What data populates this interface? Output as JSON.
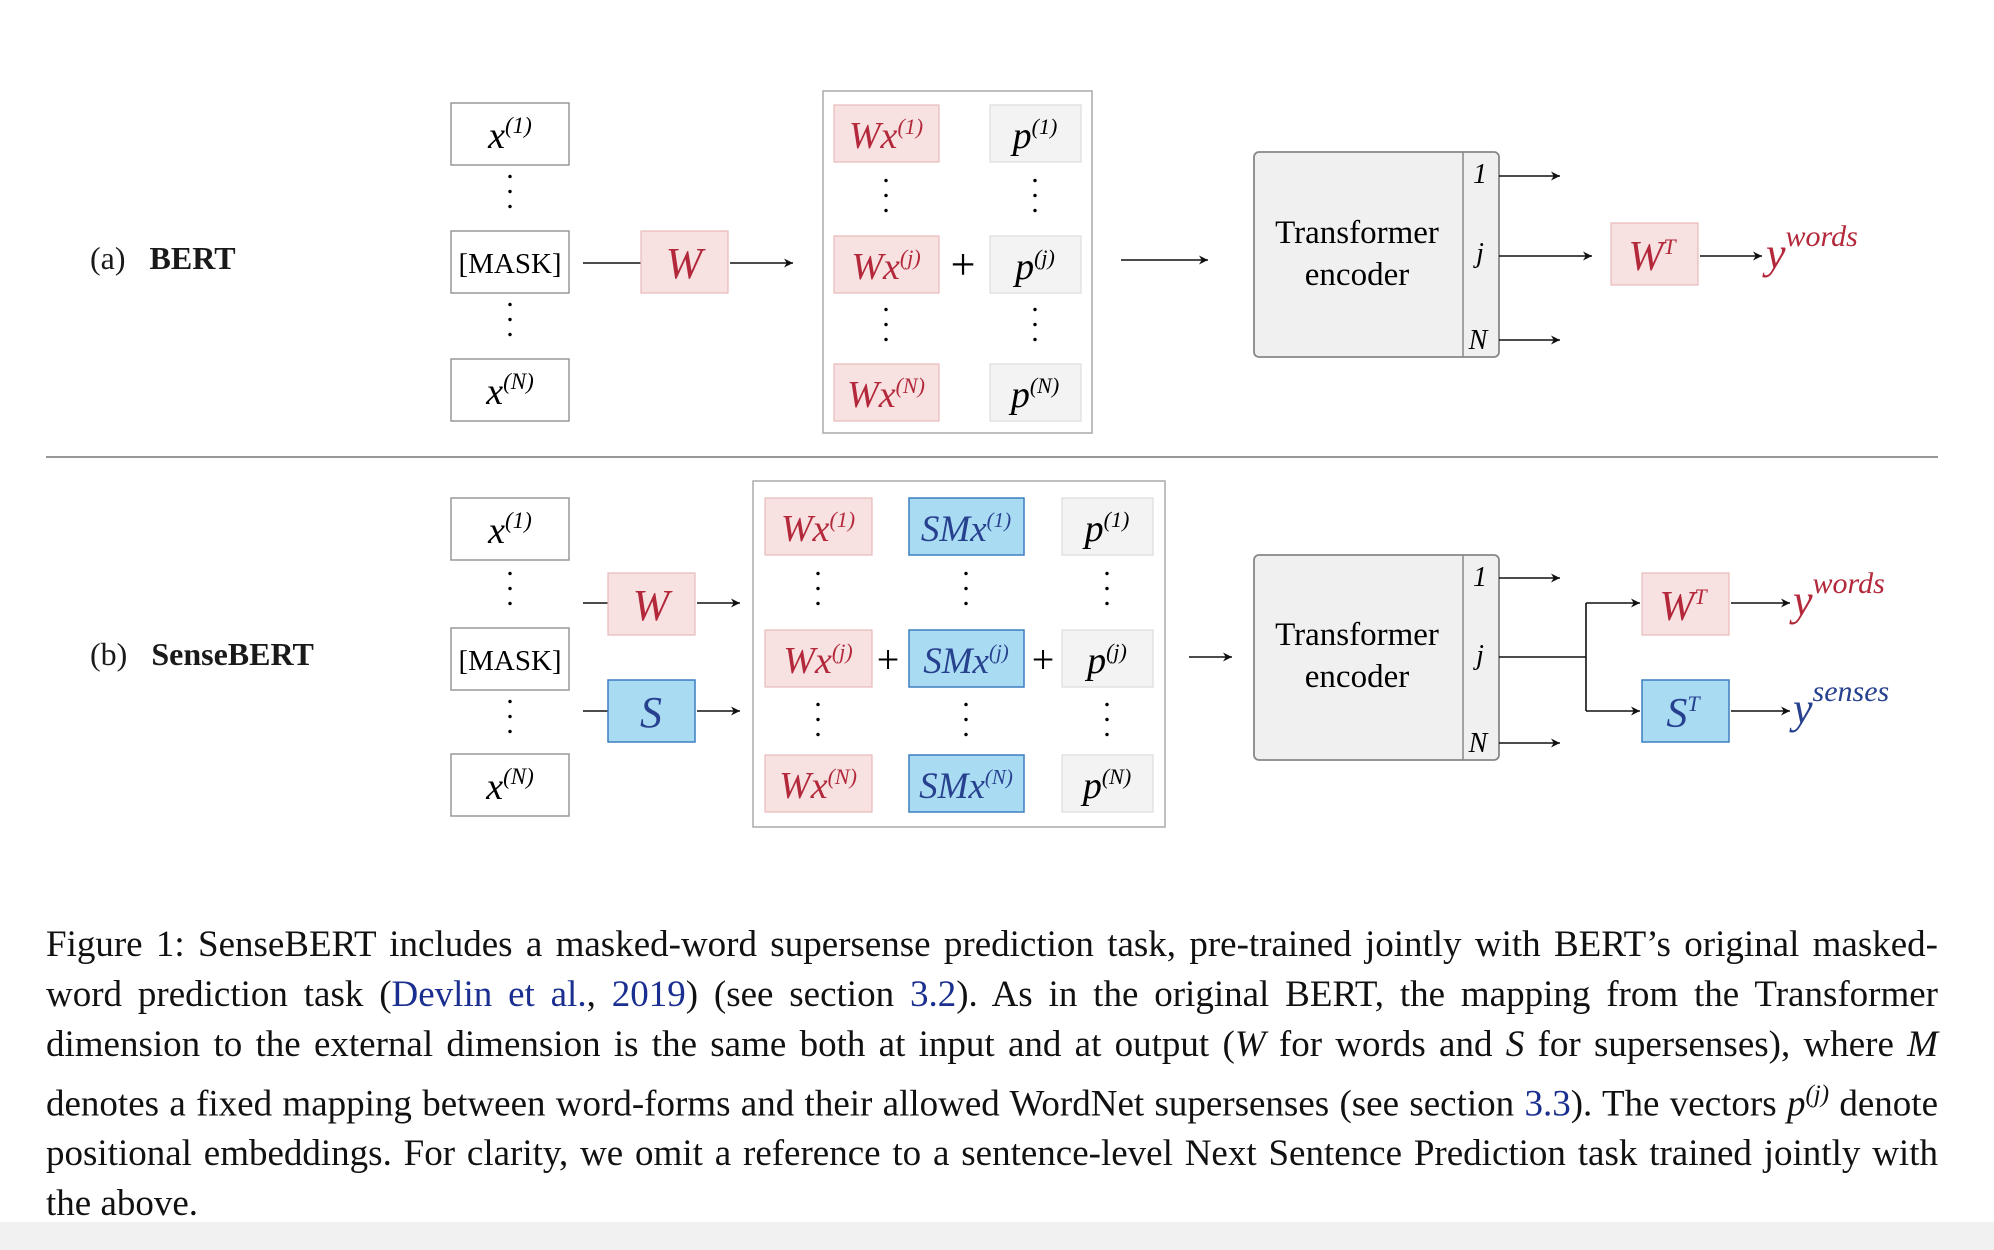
{
  "panels": {
    "a": {
      "tag": "(a)",
      "name": "BERT"
    },
    "b": {
      "tag": "(b)",
      "name": "SenseBERT"
    }
  },
  "tokens": {
    "first": "x",
    "first_sup": "(1)",
    "mask": "[MASK]",
    "last": "x",
    "last_sup": "(N)"
  },
  "matrices": {
    "word": "W",
    "sense": "S"
  },
  "embeddings": {
    "word": [
      "Wx",
      "Wx",
      "Wx"
    ],
    "word_sup": [
      "(1)",
      "(j)",
      "(N)"
    ],
    "sense": [
      "SMx",
      "SMx",
      "SMx"
    ],
    "sense_sup": [
      "(1)",
      "(j)",
      "(N)"
    ],
    "pos": [
      "p",
      "p",
      "p"
    ],
    "pos_sup": [
      "(1)",
      "(j)",
      "(N)"
    ],
    "plus": "+"
  },
  "encoder": {
    "line1": "Transformer",
    "line2": "encoder",
    "ports": [
      "1",
      "j",
      "N"
    ]
  },
  "outputs": {
    "word_matrix": "W",
    "word_matrix_sup": "T",
    "sense_matrix": "S",
    "sense_matrix_sup": "T",
    "word_y": "y",
    "word_y_sup": "words",
    "sense_y": "y",
    "sense_y_sup": "senses"
  },
  "caption": {
    "part1": "Figure 1: SenseBERT includes a masked-word supersense prediction task, pre-trained jointly with BERT’s original masked-word prediction task (",
    "cite_author": "Devlin et al.",
    "cite_sep": ", ",
    "cite_year": "2019",
    "part2": ") (see section ",
    "sec1": "3.2",
    "part3": "). As in the original BERT, the mapping from the Transformer dimension to the external dimension is the same both at input and at output (",
    "var_w": "W",
    "part4": " for words and ",
    "var_s": "S",
    "part5": " for supersenses), where ",
    "var_m": "M",
    "part6": " denotes a fixed mapping between word-forms and their allowed WordNet supersenses (see section ",
    "sec2": "3.3",
    "part7": "). The vectors ",
    "var_p": "p",
    "var_p_sup": "(j)",
    "part8": " denote positional embeddings. For clarity, we omit a reference to a sentence-level Next Sentence Prediction task trained jointly with the above."
  },
  "colors": {
    "word_fill": "#f7e1e1",
    "word_text": "#b3283a",
    "sense_fill": "#a9dcf3",
    "sense_stroke": "#3c7fc0",
    "sense_text": "#27418f",
    "pos_fill": "#f3f3f3",
    "encoder_fill": "#f0f0f0"
  }
}
